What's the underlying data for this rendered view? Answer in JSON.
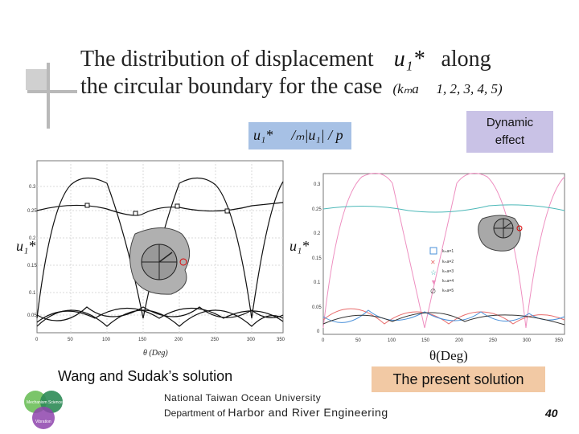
{
  "slide": {
    "title_line1": "The distribution of displacement",
    "title_symbol": "u₁*",
    "title_along": "along",
    "title_line2": "the circular boundary for the case",
    "title_case": "(kₘa ⃞ 1, 2, 3, 4, 5)",
    "formula": "u₁* ⃞ /ₘ|u₁| / p",
    "dynamic_effect_line1": "Dynamic",
    "dynamic_effect_line2": "effect",
    "caption_left": "Wang and Sudak’s solution",
    "caption_right": "The present solution",
    "footer_line1": "National Taiwan Ocean University",
    "footer_line2_prefix": "Department of",
    "footer_line2_dept": "Harbor and River Engineering",
    "page_number": "40",
    "logo_text": [
      "Mechanism",
      "Science",
      "Vibration"
    ]
  },
  "left_plot": {
    "ylabel": "u₁*",
    "xlabel": "θ (Deg)",
    "yticks": [
      "0.3",
      "0.25",
      "0.2",
      "0.15",
      "0.1",
      "0.05"
    ],
    "xticks": [
      "0",
      "50",
      "100",
      "150",
      "200",
      "250",
      "300",
      "350"
    ]
  },
  "right_plot": {
    "ylabel": "u₁*",
    "xlabel": "θ(Deg)",
    "yticks": [
      "0.3",
      "0.25",
      "0.2",
      "0.15",
      "0.1",
      "0.05",
      "0"
    ],
    "xticks": [
      "0",
      "50",
      "100",
      "150",
      "200",
      "250",
      "300",
      "350"
    ],
    "legend": [
      "kₘa=1",
      "kₘa=2",
      "kₘa=3",
      "kₘa=4",
      "kₘa=5"
    ]
  },
  "colors": {
    "formula_bg": "#a7c1e5",
    "dynamic_bg": "#c9c2e6",
    "caption_right_bg": "#f2c9a4"
  }
}
